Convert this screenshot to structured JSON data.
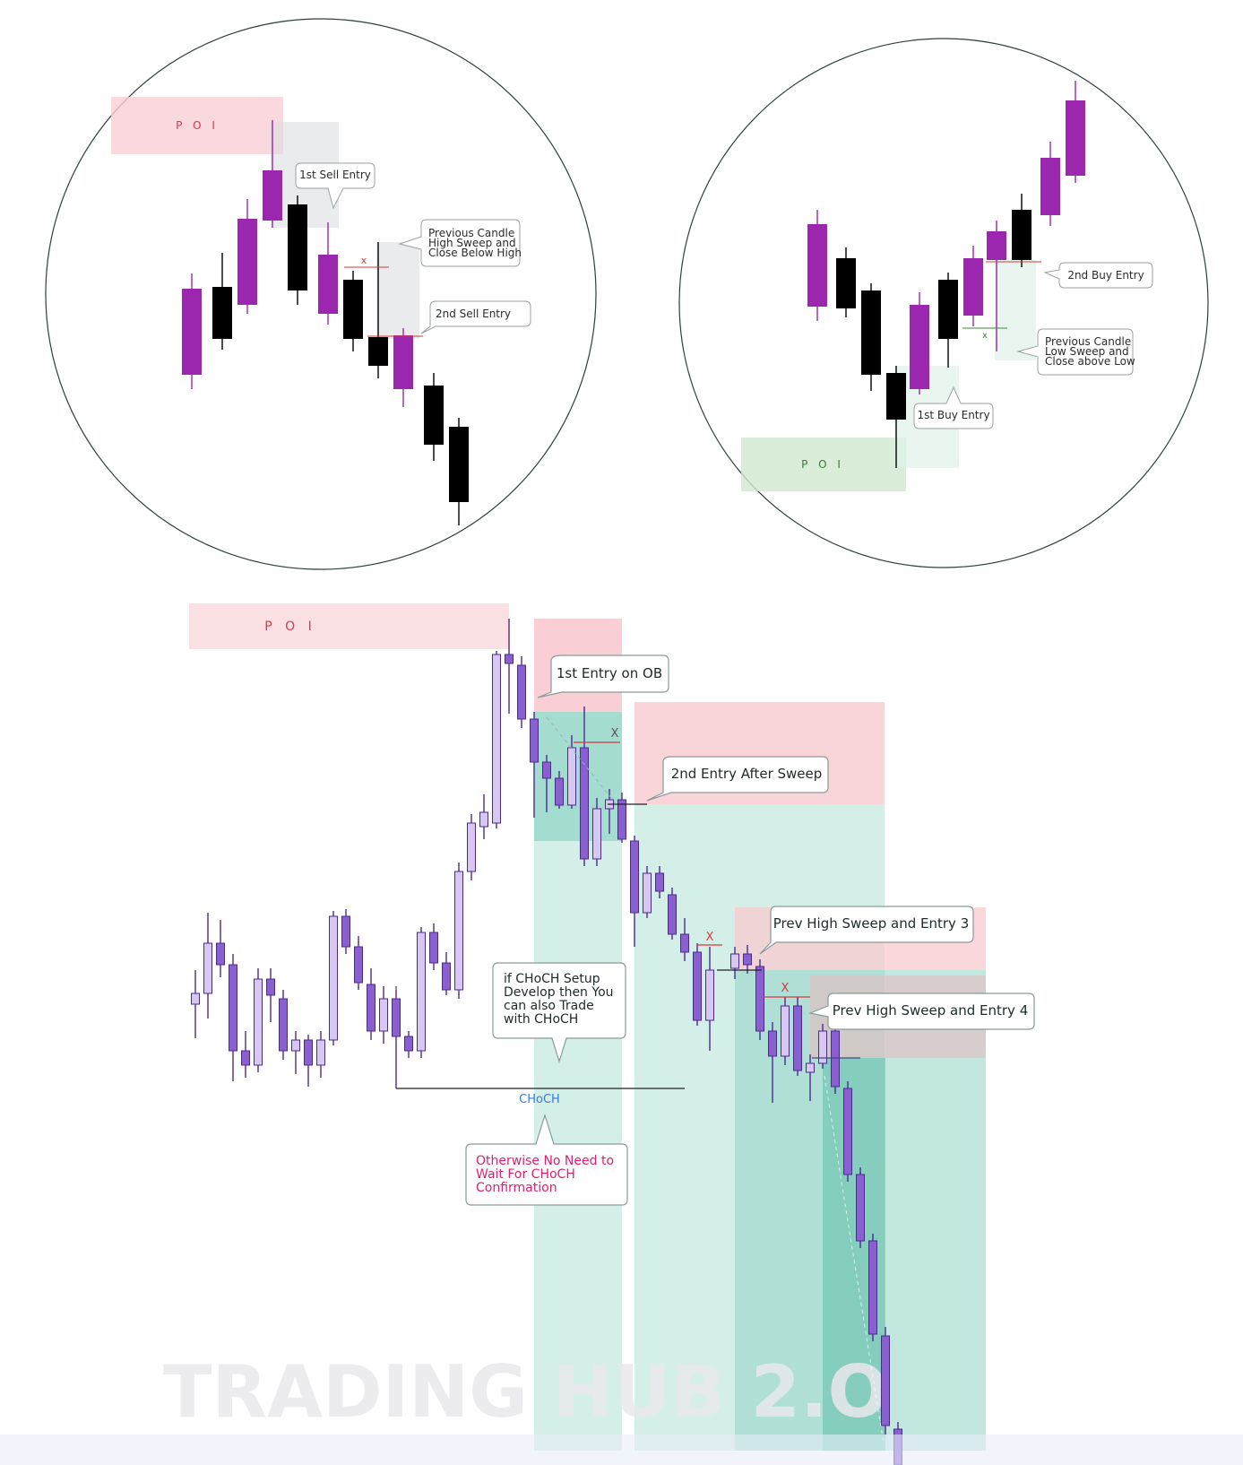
{
  "left_diagram": {
    "poi_label": "P O I",
    "poi_color": "#f8cfd4",
    "bull_color": "#9b27af",
    "bear_color": "#000000",
    "marker": "x",
    "callouts": {
      "first_entry": "1st  Sell Entry",
      "sweep_lines": [
        "Previous Candle",
        "High Sweep and",
        "Close Below High"
      ],
      "second_entry": "2nd Sell Entry"
    }
  },
  "right_diagram": {
    "poi_label": "P O I",
    "poi_color": "#cfe9cf",
    "bull_color": "#9b27af",
    "bear_color": "#000000",
    "marker": "x",
    "callouts": {
      "first_entry": "1st  Buy Entry",
      "second_entry": "2nd Buy Entry",
      "sweep_lines": [
        "Previous Candle",
        "Low Sweep and",
        "Close above Low"
      ]
    }
  },
  "main_chart": {
    "poi_label": "P O I",
    "entry_ob": "1st Entry on OB",
    "entry_sweep": "2nd Entry After Sweep",
    "entry_3": "Prev High Sweep and Entry 3",
    "entry_4": "Prev High Sweep and Entry 4",
    "choch_note_lines": [
      "if CHoCH Setup",
      "Develop then You",
      "can also Trade",
      "with CHoCH"
    ],
    "choch_label": "CHoCH",
    "otherwise_lines": [
      "Otherwise No Need to",
      "Wait For CHoCH",
      "Confirmation"
    ],
    "marker": "X",
    "watermark": "TRADING HUB 2.O",
    "colors": {
      "candle_bull": "#d7c8f2",
      "candle_bear": "#8a5fd0",
      "candle_outline": "#4a2a91",
      "stop_zone": "#f8c9cf",
      "target_zone": "#8fd3c4",
      "choch_label": "#3a7bd5",
      "otherwise_text": "#e0206a"
    }
  }
}
